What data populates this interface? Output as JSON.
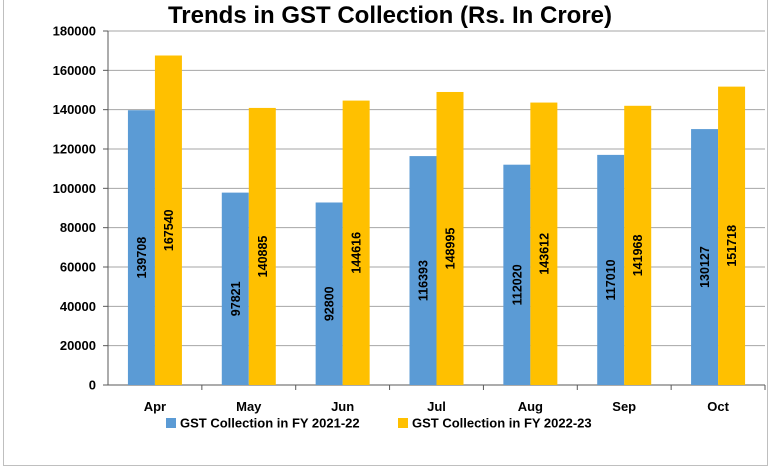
{
  "chart_data": {
    "type": "bar",
    "title": "Trends in GST Collection (Rs. In Crore)",
    "categories": [
      "Apr",
      "May",
      "Jun",
      "Jul",
      "Aug",
      "Sep",
      "Oct"
    ],
    "series": [
      {
        "name": "GST Collection in FY 2021-22",
        "color": "#5b9bd5",
        "values": [
          139708,
          97821,
          92800,
          116393,
          112020,
          117010,
          130127
        ]
      },
      {
        "name": "GST Collection in FY 2022-23",
        "color": "#ffc000",
        "values": [
          167540,
          140885,
          144616,
          148995,
          143612,
          141968,
          151718
        ]
      }
    ],
    "ylim": [
      0,
      180000
    ],
    "yticks": [
      0,
      20000,
      40000,
      60000,
      80000,
      100000,
      120000,
      140000,
      160000,
      180000
    ],
    "xlabel": "",
    "ylabel": "",
    "grid": true,
    "legend": "bottom",
    "data_labels": "inside-vertical"
  }
}
